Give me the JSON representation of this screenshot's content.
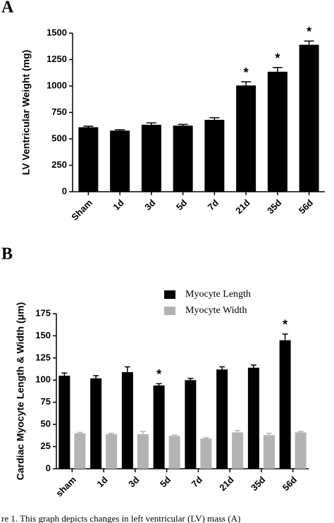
{
  "chart_data": [
    {
      "type": "bar",
      "panel_label": "A",
      "y_label": "LV Ventricular Weight (mg)",
      "categories": [
        "Sham",
        "1d",
        "3d",
        "5d",
        "7d",
        "21d",
        "35d",
        "56d"
      ],
      "series": [
        {
          "color": "#000000",
          "values": [
            610,
            578,
            633,
            625,
            680,
            1005,
            1135,
            1390
          ],
          "errors": [
            10,
            8,
            18,
            12,
            20,
            35,
            40,
            35
          ]
        }
      ],
      "ylim": [
        0,
        1500
      ],
      "yticks": [
        0,
        250,
        500,
        750,
        1000,
        1250,
        1500
      ],
      "annotations": [
        {
          "text": "*",
          "category": "21d"
        },
        {
          "text": "*",
          "category": "35d"
        },
        {
          "text": "*",
          "category": "56d"
        }
      ]
    },
    {
      "type": "bar",
      "panel_label": "B",
      "y_label": "Cardiac Myocyte Length & Width (μm)",
      "categories": [
        "sham",
        "1d",
        "3d",
        "5d",
        "7d",
        "21d",
        "35d",
        "56d"
      ],
      "series": [
        {
          "name": "Myocyte Length",
          "color": "#000000",
          "values": [
            105,
            102,
            109,
            94,
            100,
            112,
            114,
            145
          ],
          "errors": [
            3,
            3,
            6,
            2,
            2,
            3,
            3,
            7
          ]
        },
        {
          "name": "Myocyte Width",
          "color": "#b3b3b3",
          "values": [
            40,
            39,
            39,
            37,
            34,
            41,
            38,
            41
          ],
          "errors": [
            1,
            1,
            3,
            1,
            1,
            2,
            2,
            1
          ]
        }
      ],
      "ylim": [
        0,
        175
      ],
      "yticks": [
        0,
        25,
        50,
        75,
        100,
        125,
        150,
        175
      ],
      "annotations": [
        {
          "text": "*",
          "category": "5d"
        },
        {
          "text": "*",
          "category": "56d"
        }
      ]
    }
  ],
  "caption": "re 1. This graph depicts changes in left ventricular (LV) mass (A)"
}
